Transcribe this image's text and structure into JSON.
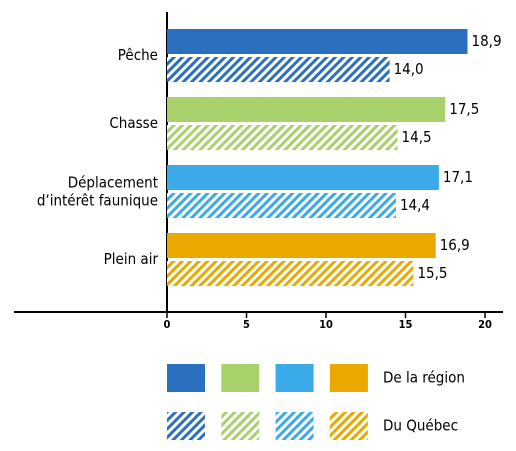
{
  "chart_data": {
    "type": "bar",
    "orientation": "horizontal",
    "categories": [
      "Pêche",
      "Chasse",
      "Déplacement d’intérêt faunique",
      "Plein air"
    ],
    "colors": [
      "#2a70be",
      "#a8d16c",
      "#3aaae8",
      "#e9a900"
    ],
    "series": [
      {
        "name": "De la région",
        "pattern": "solid",
        "values": [
          18.9,
          17.5,
          17.1,
          16.9
        ],
        "value_labels": [
          "18,9",
          "17,5",
          "17,1",
          "16,9"
        ]
      },
      {
        "name": "Du Québec",
        "pattern": "hatch",
        "values": [
          14.0,
          14.5,
          14.4,
          15.5
        ],
        "value_labels": [
          "14,0",
          "14,5",
          "14,4",
          "15,5"
        ]
      }
    ],
    "xlim": [
      0,
      20
    ],
    "xticks": [
      0,
      5,
      10,
      15,
      20
    ],
    "legend": "bottom"
  }
}
